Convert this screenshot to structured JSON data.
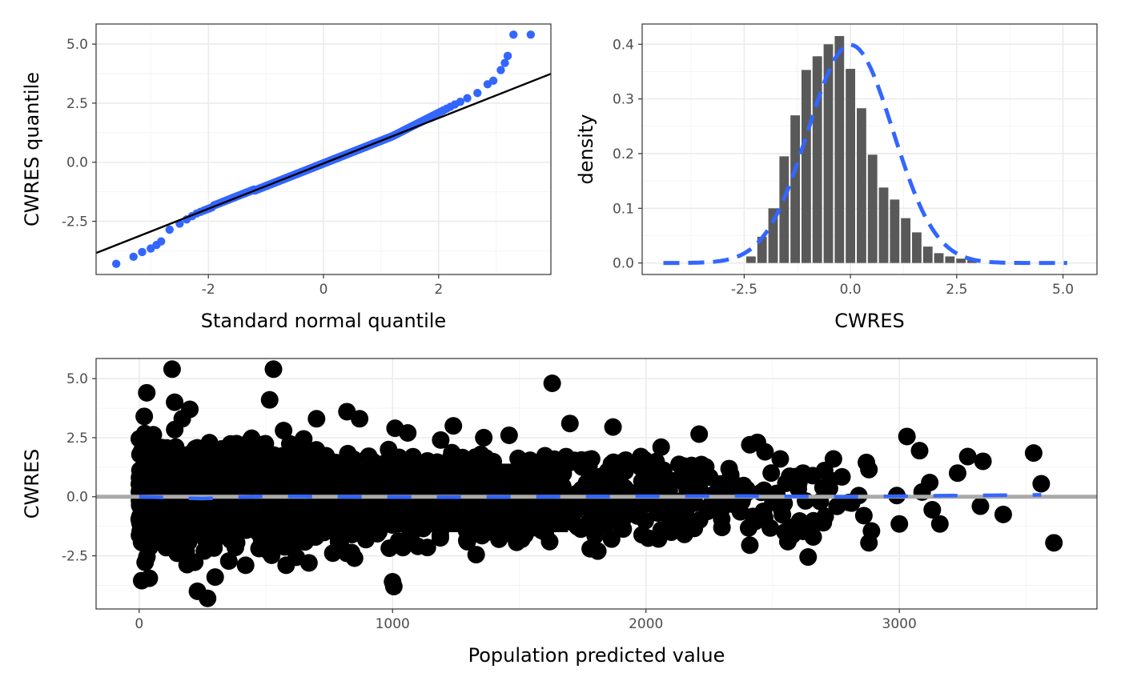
{
  "colors": {
    "qq_points": "#3366FF",
    "qq_line": "#000000",
    "hist_bar": "#595959",
    "density_line": "#3366FF",
    "scatter_points": "#000000",
    "zero_line": "#AAAAAA",
    "smooth_line": "#3366FF"
  },
  "chart_data": [
    {
      "id": "qq",
      "type": "scatter",
      "xlabel": "Standard normal quantile",
      "ylabel": "CWRES quantile",
      "xlim": [
        -3.95,
        3.95
      ],
      "ylim": [
        -4.75,
        5.85
      ],
      "x_ticks": [
        -2,
        0,
        2
      ],
      "x_tick_labels": [
        "-2",
        "0",
        "2"
      ],
      "y_ticks": [
        -2.5,
        0,
        2.5,
        5
      ],
      "y_tick_labels": [
        "-2.5",
        "0.0",
        "2.5",
        "5.0"
      ],
      "reference_line": {
        "intercept": -0.05,
        "slope": 0.96
      },
      "highlight_points": [
        [
          -3.6,
          -4.3
        ],
        [
          -3.3,
          -4.0
        ],
        [
          -3.15,
          -3.8
        ],
        [
          -3.0,
          -3.65
        ],
        [
          -2.9,
          -3.5
        ],
        [
          -2.82,
          -3.35
        ],
        [
          3.08,
          3.9
        ],
        [
          3.15,
          4.2
        ],
        [
          3.2,
          4.5
        ],
        [
          3.3,
          5.4
        ],
        [
          3.6,
          5.4
        ],
        [
          2.95,
          3.45
        ],
        [
          2.85,
          3.3
        ]
      ],
      "grid": true
    },
    {
      "id": "hist",
      "type": "bar",
      "xlabel": "CWRES",
      "ylabel": "density",
      "xlim": [
        -4.9,
        5.8
      ],
      "ylim": [
        -0.021,
        0.437
      ],
      "x_ticks": [
        -2.5,
        0,
        2.5,
        5
      ],
      "x_tick_labels": [
        "-2.5",
        "0.0",
        "2.5",
        "5.0"
      ],
      "y_ticks": [
        0,
        0.1,
        0.2,
        0.3,
        0.4
      ],
      "y_tick_labels": [
        "0.0",
        "0.1",
        "0.2",
        "0.3",
        "0.4"
      ],
      "bin_width": 0.26,
      "bin_centers": [
        -2.34,
        -2.08,
        -1.82,
        -1.56,
        -1.3,
        -1.04,
        -0.78,
        -0.52,
        -0.26,
        0.0,
        0.26,
        0.52,
        0.78,
        1.04,
        1.3,
        1.56,
        1.82,
        2.08,
        2.34,
        2.6,
        2.86
      ],
      "values": [
        0.012,
        0.048,
        0.1,
        0.195,
        0.27,
        0.353,
        0.378,
        0.4,
        0.415,
        0.355,
        0.283,
        0.198,
        0.138,
        0.116,
        0.082,
        0.056,
        0.03,
        0.018,
        0.012,
        0.008,
        0.005
      ],
      "density_curve": {
        "mean": 0.0,
        "sd": 1.0,
        "x_range": [
          -4.4,
          5.1
        ]
      },
      "grid": true
    },
    {
      "id": "resid",
      "type": "scatter",
      "xlabel": "Population predicted value",
      "ylabel": "CWRES",
      "xlim": [
        -170,
        3780
      ],
      "ylim": [
        -4.75,
        5.85
      ],
      "x_ticks": [
        0,
        1000,
        2000,
        3000
      ],
      "x_tick_labels": [
        "0",
        "1000",
        "2000",
        "3000"
      ],
      "y_ticks": [
        -2.5,
        0,
        2.5,
        5
      ],
      "y_tick_labels": [
        "-2.5",
        "0.0",
        "2.5",
        "5.0"
      ],
      "zero_line": 0,
      "smooth_line": [
        [
          0,
          0.0
        ],
        [
          250,
          -0.08
        ],
        [
          500,
          0.02
        ],
        [
          800,
          0.0
        ],
        [
          1200,
          -0.02
        ],
        [
          1600,
          0.0
        ],
        [
          2000,
          0.02
        ],
        [
          2400,
          0.03
        ],
        [
          2800,
          0.0
        ],
        [
          3200,
          0.05
        ],
        [
          3560,
          0.08
        ]
      ],
      "outliers": [
        [
          30,
          4.4
        ],
        [
          20,
          3.4
        ],
        [
          130,
          5.4
        ],
        [
          140,
          4.0
        ],
        [
          200,
          3.7
        ],
        [
          170,
          3.3
        ],
        [
          530,
          5.4
        ],
        [
          515,
          4.1
        ],
        [
          570,
          2.8
        ],
        [
          700,
          3.3
        ],
        [
          820,
          3.6
        ],
        [
          870,
          3.3
        ],
        [
          1630,
          4.8
        ],
        [
          1700,
          3.1
        ],
        [
          1870,
          2.95
        ],
        [
          1240,
          3.0
        ],
        [
          1460,
          2.6
        ],
        [
          2210,
          2.65
        ],
        [
          3030,
          2.55
        ],
        [
          3080,
          1.95
        ],
        [
          3270,
          1.7
        ],
        [
          3330,
          1.5
        ],
        [
          3530,
          1.85
        ],
        [
          3560,
          0.55
        ],
        [
          3120,
          0.6
        ],
        [
          3090,
          0.2
        ],
        [
          3130,
          -0.55
        ],
        [
          3160,
          -1.15
        ],
        [
          3000,
          -1.15
        ],
        [
          3320,
          -0.4
        ],
        [
          3410,
          -0.75
        ],
        [
          3610,
          -1.95
        ],
        [
          2870,
          1.45
        ],
        [
          2880,
          1.15
        ],
        [
          2740,
          1.6
        ],
        [
          2840,
          0.05
        ],
        [
          2860,
          -0.8
        ],
        [
          2890,
          -1.45
        ],
        [
          2880,
          -1.95
        ],
        [
          2640,
          -2.55
        ],
        [
          2410,
          -2.05
        ],
        [
          1780,
          -2.2
        ],
        [
          1810,
          -2.3
        ],
        [
          1330,
          -2.45
        ],
        [
          1000,
          -3.6
        ],
        [
          1005,
          -3.8
        ],
        [
          230,
          -4.0
        ],
        [
          270,
          -4.3
        ],
        [
          10,
          -3.55
        ],
        [
          40,
          -3.45
        ],
        [
          300,
          -3.4
        ],
        [
          420,
          -2.9
        ],
        [
          580,
          -2.9
        ],
        [
          670,
          -2.8
        ],
        [
          850,
          -2.6
        ],
        [
          1100,
          -2.1
        ],
        [
          1420,
          -1.8
        ],
        [
          1510,
          -1.8
        ],
        [
          1620,
          -1.9
        ],
        [
          2100,
          -1.5
        ],
        [
          2300,
          -1.3
        ],
        [
          2560,
          -1.9
        ],
        [
          2660,
          -1.7
        ],
        [
          2470,
          1.9
        ],
        [
          2530,
          1.6
        ],
        [
          2410,
          2.2
        ],
        [
          2440,
          2.3
        ],
        [
          1980,
          1.7
        ],
        [
          2060,
          2.1
        ],
        [
          1920,
          1.55
        ],
        [
          2150,
          1.3
        ],
        [
          1760,
          1.45
        ],
        [
          1700,
          1.45
        ],
        [
          1560,
          1.35
        ],
        [
          1060,
          2.7
        ],
        [
          1190,
          2.4
        ],
        [
          1360,
          2.5
        ],
        [
          1010,
          2.9
        ],
        [
          3230,
          1.0
        ],
        [
          2620,
          1.0
        ],
        [
          2590,
          0.85
        ],
        [
          2990,
          0.05
        ],
        [
          2700,
          -1.1
        ]
      ],
      "band": {
        "x_start": 0,
        "x_end": 2820,
        "top": 1.4,
        "bottom": -1.5,
        "outer_top": 3.0,
        "outer_bottom": -3.0
      },
      "grid": true
    }
  ]
}
